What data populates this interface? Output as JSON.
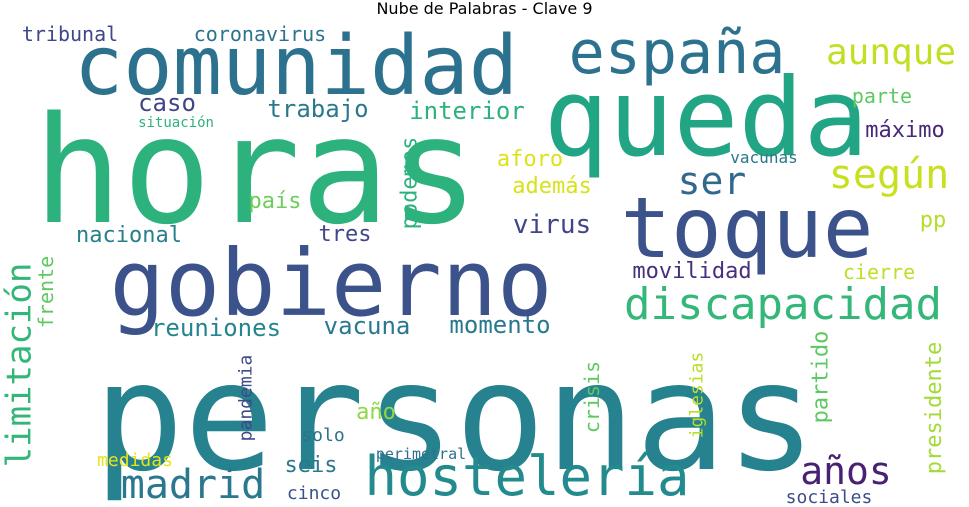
{
  "title": "Nube de Palabras - Clave 9",
  "words": [
    {
      "text": "personas",
      "color": "#26828e"
    },
    {
      "text": "horas",
      "color": "#2db27d"
    },
    {
      "text": "queda",
      "color": "#21a585"
    },
    {
      "text": "gobierno",
      "color": "#3b528b"
    },
    {
      "text": "comunidad",
      "color": "#2c728e"
    },
    {
      "text": "toque",
      "color": "#3b528b"
    },
    {
      "text": "hostelería",
      "color": "#238a8d"
    },
    {
      "text": "españa",
      "color": "#2c728e"
    },
    {
      "text": "discapacidad",
      "color": "#35b779"
    },
    {
      "text": "aunque",
      "color": "#c2df23"
    },
    {
      "text": "limitación",
      "color": "#34b679"
    },
    {
      "text": "madrid",
      "color": "#2a788e"
    },
    {
      "text": "años",
      "color": "#482173"
    },
    {
      "text": "según",
      "color": "#c8e020"
    },
    {
      "text": "ser",
      "color": "#31688e"
    },
    {
      "text": "reuniones",
      "color": "#25858e"
    },
    {
      "text": "vacuna",
      "color": "#2a788e"
    },
    {
      "text": "momento",
      "color": "#29798e"
    },
    {
      "text": "presidente",
      "color": "#a2da37"
    },
    {
      "text": "movilidad",
      "color": "#46307e"
    },
    {
      "text": "trabajo",
      "color": "#2a788e"
    },
    {
      "text": "interior",
      "color": "#2db27d"
    },
    {
      "text": "caso",
      "color": "#404588"
    },
    {
      "text": "virus",
      "color": "#414487"
    },
    {
      "text": "nacional",
      "color": "#277f8e"
    },
    {
      "text": "frente",
      "color": "#5ec962"
    },
    {
      "text": "podemos",
      "color": "#2db27d"
    },
    {
      "text": "tres",
      "color": "#404688"
    },
    {
      "text": "país",
      "color": "#6ccd5a"
    },
    {
      "text": "además",
      "color": "#d8e219"
    },
    {
      "text": "aforo",
      "color": "#dde318"
    },
    {
      "text": "máximo",
      "color": "#482878"
    },
    {
      "text": "parte",
      "color": "#5ec962"
    },
    {
      "text": "pp",
      "color": "#b5de2b"
    },
    {
      "text": "cierre",
      "color": "#bddf26"
    },
    {
      "text": "partido",
      "color": "#5ec962"
    },
    {
      "text": "pandemia",
      "color": "#3e4a89"
    },
    {
      "text": "año",
      "color": "#8fd744"
    },
    {
      "text": "crisis",
      "color": "#5ec962"
    },
    {
      "text": "iglesias",
      "color": "#b8de29"
    },
    {
      "text": "seis",
      "color": "#2a788e"
    },
    {
      "text": "solo",
      "color": "#2c728e"
    },
    {
      "text": "medidas",
      "color": "#e5e419"
    },
    {
      "text": "cinco",
      "color": "#3b528b"
    },
    {
      "text": "sociales",
      "color": "#3e4c8a"
    },
    {
      "text": "perimetral",
      "color": "#2c728e"
    },
    {
      "text": "tribunal",
      "color": "#3f4788"
    },
    {
      "text": "coronavirus",
      "color": "#2c728e"
    },
    {
      "text": "vacunas",
      "color": "#2a768e"
    },
    {
      "text": "situación",
      "color": "#2db27d"
    }
  ]
}
